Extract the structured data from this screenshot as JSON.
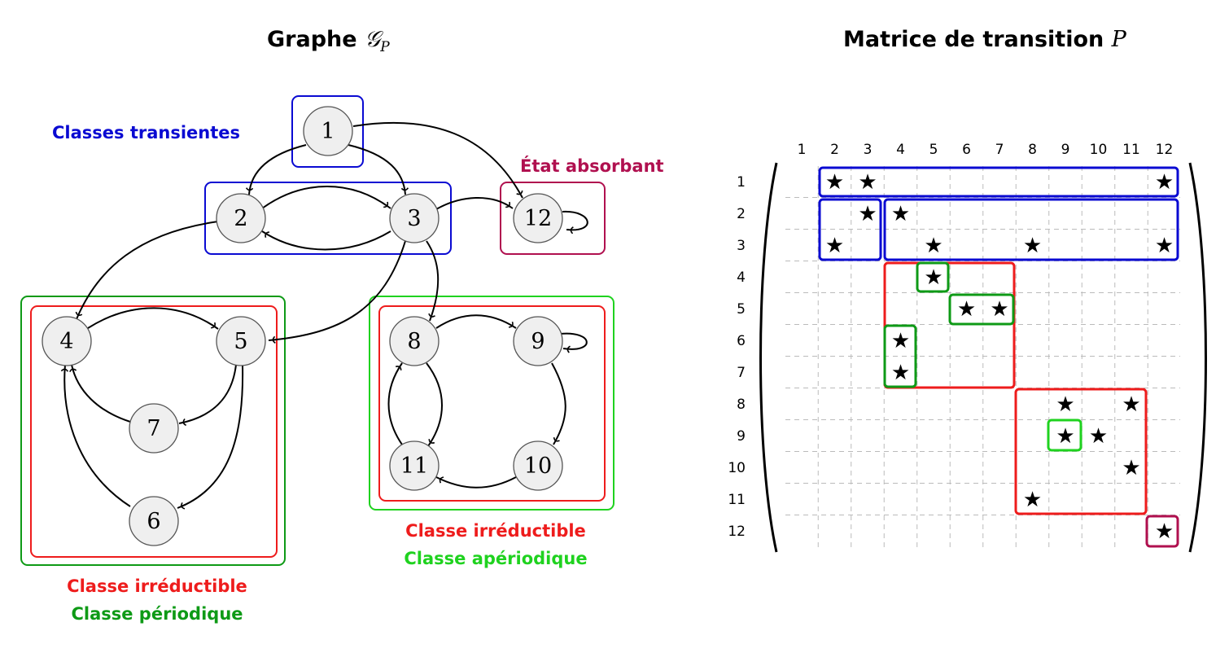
{
  "graph": {
    "title_text": "Graphe ",
    "title_math": "𝒢",
    "title_sub": "P",
    "nodes": [
      {
        "id": "1",
        "label": "1"
      },
      {
        "id": "2",
        "label": "2"
      },
      {
        "id": "3",
        "label": "3"
      },
      {
        "id": "4",
        "label": "4"
      },
      {
        "id": "5",
        "label": "5"
      },
      {
        "id": "6",
        "label": "6"
      },
      {
        "id": "7",
        "label": "7"
      },
      {
        "id": "8",
        "label": "8"
      },
      {
        "id": "9",
        "label": "9"
      },
      {
        "id": "10",
        "label": "10"
      },
      {
        "id": "11",
        "label": "11"
      },
      {
        "id": "12",
        "label": "12"
      }
    ],
    "labels": {
      "transient": "Classes transientes",
      "absorbing": "État absorbant",
      "left_irreducible": "Classe irréductible",
      "left_periodic": "Classe périodique",
      "right_irreducible": "Classe irréductible",
      "right_aperiodic": "Classe apériodique"
    },
    "colors": {
      "transient": "#0a0ad2",
      "absorbing": "#b0104f",
      "irreducible": "#ee1c1c",
      "periodic": "#0e9a16",
      "aperiodic": "#1fd21f"
    }
  },
  "matrix": {
    "title_text": "Matrice de transition ",
    "title_math": "P",
    "column_labels": [
      "1",
      "2",
      "3",
      "4",
      "5",
      "6",
      "7",
      "8",
      "9",
      "10",
      "11",
      "12"
    ],
    "row_labels": [
      "1",
      "2",
      "3",
      "4",
      "5",
      "6",
      "7",
      "8",
      "9",
      "10",
      "11",
      "12"
    ],
    "star_symbol": "★",
    "stars": [
      [
        1,
        2
      ],
      [
        1,
        3
      ],
      [
        1,
        12
      ],
      [
        2,
        3
      ],
      [
        2,
        4
      ],
      [
        3,
        2
      ],
      [
        3,
        5
      ],
      [
        3,
        8
      ],
      [
        3,
        12
      ],
      [
        4,
        5
      ],
      [
        5,
        6
      ],
      [
        5,
        7
      ],
      [
        6,
        4
      ],
      [
        7,
        4
      ],
      [
        8,
        9
      ],
      [
        8,
        11
      ],
      [
        9,
        9
      ],
      [
        9,
        10
      ],
      [
        10,
        11
      ],
      [
        11,
        8
      ],
      [
        12,
        12
      ]
    ]
  }
}
